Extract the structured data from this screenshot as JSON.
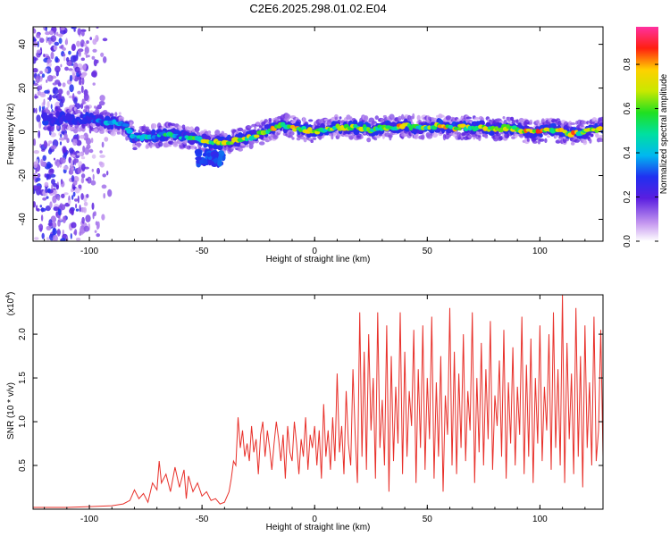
{
  "page_title": "C2E6.2025.298.01.02.E04",
  "colors": {
    "snr_line": "#e8302a",
    "axis": "#000000",
    "background": "#ffffff"
  },
  "chart_data": [
    {
      "type": "heatmap",
      "title": "C2E6.2025.298.01.02.E04",
      "xlabel": "Height of straight line (km)",
      "ylabel": "Frequency (Hz)",
      "xlim": [
        -125,
        128
      ],
      "ylim": [
        -50,
        48
      ],
      "x_ticks": [
        -100,
        -50,
        0,
        50,
        100
      ],
      "y_ticks": [
        -40,
        -20,
        0,
        20,
        40
      ],
      "colorbar": {
        "label": "Normalized spectral amplitude",
        "range": [
          0,
          0.97
        ],
        "ticks": [
          0.0,
          0.2,
          0.4,
          0.6,
          0.8
        ],
        "tick_labels": [
          "0.0",
          "0.2",
          "0.4",
          "0.6",
          "0.8"
        ]
      },
      "ridge": {
        "x": [
          -118,
          -110,
          -100,
          -95,
          -90,
          -85,
          -80,
          -75,
          -70,
          -65,
          -60,
          -55,
          -50,
          -45,
          -40,
          -35,
          -30,
          -25,
          -20,
          -15,
          -10,
          -5,
          0,
          5,
          10,
          15,
          20,
          25,
          30,
          35,
          40,
          45,
          50,
          55,
          60,
          65,
          70,
          75,
          80,
          85,
          90,
          95,
          100,
          105,
          110,
          115,
          120,
          125
        ],
        "freq": [
          6,
          6,
          6,
          5,
          4,
          4,
          -3,
          -2,
          -2,
          -1,
          -2,
          -3,
          -4,
          -5,
          -5,
          -4,
          -3,
          -1,
          1,
          3,
          2,
          1,
          0,
          1,
          2,
          2,
          2,
          1,
          2,
          2,
          3,
          2,
          2,
          3,
          2,
          2,
          2,
          2,
          1,
          2,
          1,
          0,
          0,
          1,
          0,
          -1,
          0,
          1
        ],
        "amplitude": [
          0.25,
          0.3,
          0.35,
          0.4,
          0.45,
          0.4,
          0.55,
          0.5,
          0.55,
          0.6,
          0.5,
          0.55,
          0.75,
          0.8,
          0.92,
          0.85,
          0.75,
          0.8,
          0.85,
          0.8,
          0.8,
          0.85,
          0.7,
          0.75,
          0.85,
          0.85,
          0.7,
          0.8,
          0.75,
          0.8,
          0.85,
          0.75,
          0.7,
          0.85,
          0.8,
          0.9,
          0.7,
          0.75,
          0.85,
          0.7,
          0.8,
          0.85,
          0.9,
          0.75,
          0.8,
          0.85,
          0.7,
          0.75
        ]
      },
      "secondary_patch": {
        "x": [
          -52,
          -40
        ],
        "freq": [
          -15,
          -9
        ],
        "amplitude": 0.25
      },
      "noise_region": {
        "x": [
          -125,
          -90
        ],
        "freq": [
          -50,
          48
        ],
        "amplitude": 0.2
      }
    },
    {
      "type": "line",
      "xlabel": "Height of straight line (km)",
      "ylabel": "SNR (10 * v/v)",
      "y_multiplier_label": "(x10",
      "y_multiplier_exp": "4",
      "y_multiplier_close": ")",
      "xlim": [
        -125,
        128
      ],
      "ylim": [
        0,
        2.45
      ],
      "x_ticks": [
        -100,
        -50,
        0,
        50,
        100
      ],
      "y_ticks": [
        0.5,
        1.0,
        1.5,
        2.0
      ],
      "y_tick_labels": [
        "0.5",
        "1.0",
        "1.5",
        "2.0"
      ],
      "series": [
        {
          "name": "SNR",
          "x": [
            -125,
            -110,
            -100,
            -90,
            -85,
            -82,
            -80,
            -78,
            -76,
            -74,
            -72,
            -70,
            -69,
            -68,
            -66,
            -64,
            -62,
            -60,
            -58,
            -57,
            -56,
            -54,
            -52,
            -50,
            -48,
            -46,
            -44,
            -42,
            -40,
            -38,
            -37,
            -36,
            -35,
            -34,
            -33,
            -32,
            -31,
            -30,
            -29,
            -28,
            -27,
            -26,
            -25,
            -24,
            -23,
            -22,
            -21,
            -20,
            -19,
            -18,
            -17,
            -16,
            -15,
            -14,
            -13,
            -12,
            -11,
            -10,
            -9,
            -8,
            -7,
            -6,
            -5,
            -4,
            -3,
            -2,
            -1,
            0,
            1,
            2,
            3,
            4,
            5,
            6,
            7,
            8,
            9,
            10,
            11,
            12,
            13,
            14,
            15,
            16,
            17,
            18,
            19,
            20,
            21,
            22,
            23,
            24,
            25,
            26,
            27,
            28,
            29,
            30,
            31,
            32,
            33,
            34,
            35,
            36,
            37,
            38,
            39,
            40,
            41,
            42,
            43,
            44,
            45,
            46,
            47,
            48,
            49,
            50,
            51,
            52,
            53,
            54,
            55,
            56,
            57,
            58,
            59,
            60,
            61,
            62,
            63,
            64,
            65,
            66,
            67,
            68,
            69,
            70,
            71,
            72,
            73,
            74,
            75,
            76,
            77,
            78,
            79,
            80,
            81,
            82,
            83,
            84,
            85,
            86,
            87,
            88,
            89,
            90,
            91,
            92,
            93,
            94,
            95,
            96,
            97,
            98,
            99,
            100,
            101,
            102,
            103,
            104,
            105,
            106,
            107,
            108,
            109,
            110,
            111,
            112,
            113,
            114,
            115,
            116,
            117,
            118,
            119,
            120,
            121,
            122,
            123,
            124,
            125,
            126,
            127,
            128
          ],
          "values": [
            0.02,
            0.02,
            0.03,
            0.04,
            0.06,
            0.1,
            0.22,
            0.12,
            0.18,
            0.08,
            0.3,
            0.22,
            0.55,
            0.3,
            0.4,
            0.2,
            0.48,
            0.25,
            0.45,
            0.12,
            0.38,
            0.2,
            0.3,
            0.15,
            0.2,
            0.1,
            0.12,
            0.06,
            0.08,
            0.2,
            0.35,
            0.55,
            0.5,
            1.05,
            0.7,
            0.9,
            0.6,
            0.75,
            0.55,
            0.95,
            0.65,
            0.8,
            0.4,
            0.85,
            1.0,
            0.6,
            0.9,
            0.7,
            0.45,
            0.75,
            1.0,
            0.8,
            0.55,
            0.85,
            0.35,
            0.95,
            0.65,
            0.55,
            1.0,
            0.75,
            0.4,
            0.8,
            0.6,
            1.05,
            0.45,
            0.85,
            0.7,
            0.95,
            0.5,
            0.9,
            0.35,
            1.2,
            0.6,
            0.9,
            0.45,
            1.05,
            0.55,
            1.55,
            0.65,
            0.95,
            0.4,
            1.35,
            0.75,
            0.5,
            1.6,
            0.85,
            0.3,
            2.25,
            0.6,
            1.8,
            0.45,
            2.0,
            0.9,
            1.5,
            0.35,
            2.25,
            0.7,
            1.25,
            0.5,
            2.1,
            0.2,
            1.75,
            0.55,
            1.4,
            0.75,
            2.25,
            0.4,
            1.8,
            0.6,
            1.35,
            0.95,
            2.05,
            0.3,
            1.6,
            0.7,
            2.1,
            0.45,
            1.5,
            0.8,
            2.2,
            0.35,
            1.45,
            0.6,
            1.75,
            0.2,
            1.3,
            0.85,
            2.3,
            0.5,
            1.8,
            0.4,
            1.55,
            0.7,
            2.0,
            0.55,
            1.35,
            0.9,
            2.25,
            0.3,
            1.5,
            0.65,
            1.9,
            0.5,
            1.6,
            0.8,
            2.15,
            0.45,
            1.3,
            0.95,
            1.7,
            0.6,
            2.05,
            0.35,
            1.45,
            0.75,
            1.85,
            0.5,
            1.4,
            0.85,
            2.2,
            0.4,
            1.65,
            0.6,
            1.95,
            0.3,
            1.5,
            0.75,
            2.1,
            0.55,
            1.4,
            0.9,
            2.0,
            0.45,
            2.25,
            0.7,
            1.6,
            0.5,
            2.45,
            0.3,
            1.9,
            0.8,
            1.55,
            0.4,
            2.3,
            0.6,
            1.75,
            0.25,
            2.1,
            0.7,
            1.45,
            0.5,
            2.2,
            0.55,
            0.9,
            2.05,
            0.6
          ]
        }
      ]
    }
  ]
}
